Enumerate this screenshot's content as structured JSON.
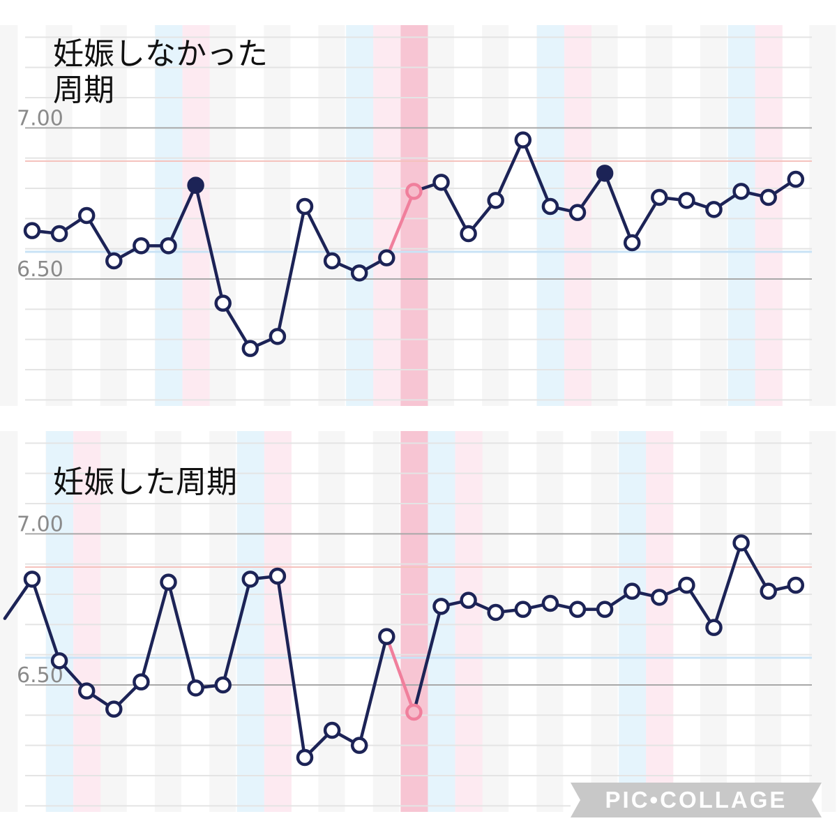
{
  "chart_data": [
    {
      "type": "line",
      "title": "妊娠しなかった\n周期",
      "yticks": [
        "7.00",
        "6.50"
      ],
      "ylim": [
        6.08,
        7.34
      ],
      "reference_lines": [
        6.89,
        6.59
      ],
      "x_start": 0,
      "values": [
        6.66,
        6.65,
        6.71,
        6.56,
        6.61,
        6.61,
        6.81,
        6.42,
        6.27,
        6.31,
        6.74,
        6.56,
        6.52,
        6.57,
        6.79,
        6.82,
        6.65,
        6.76,
        6.96,
        6.74,
        6.72,
        6.85,
        6.62,
        6.77,
        6.76,
        6.73,
        6.79,
        6.77,
        6.83
      ],
      "marker_styles": [
        "open",
        "open",
        "open",
        "open",
        "open",
        "open",
        "filled",
        "open",
        "open",
        "open",
        "open",
        "open",
        "open",
        "open",
        "pink",
        "open",
        "open",
        "open",
        "open",
        "open",
        "open",
        "filled",
        "open",
        "open",
        "open",
        "open",
        "open",
        "open",
        "open"
      ],
      "pink_segment": 13,
      "bands": [
        {
          "day": 5,
          "color": "blue"
        },
        {
          "day": 6,
          "color": "pink"
        },
        {
          "day": 12,
          "color": "blue"
        },
        {
          "day": 13,
          "color": "pink"
        },
        {
          "day": 14,
          "color": "ovulation"
        },
        {
          "day": 19,
          "color": "blue"
        },
        {
          "day": 20,
          "color": "pink"
        },
        {
          "day": 26,
          "color": "blue"
        },
        {
          "day": 27,
          "color": "pink"
        }
      ]
    },
    {
      "type": "line",
      "title": "妊娠した周期",
      "yticks": [
        "7.00",
        "6.50"
      ],
      "ylim": [
        6.08,
        7.34
      ],
      "reference_lines": [
        6.89,
        6.59
      ],
      "x_start": -1,
      "values": [
        6.72,
        6.85,
        6.58,
        6.48,
        6.42,
        6.51,
        6.84,
        6.49,
        6.5,
        6.85,
        6.86,
        6.26,
        6.35,
        6.3,
        6.66,
        6.41,
        6.76,
        6.78,
        6.74,
        6.75,
        6.77,
        6.75,
        6.75,
        6.81,
        6.79,
        6.83,
        6.69,
        6.97,
        6.81,
        6.83
      ],
      "marker_styles": [
        "none",
        "open",
        "open",
        "open",
        "open",
        "open",
        "open",
        "open",
        "open",
        "open",
        "open",
        "open",
        "open",
        "open",
        "open",
        "pink",
        "open",
        "open",
        "open",
        "open",
        "open",
        "open",
        "open",
        "open",
        "open",
        "open",
        "open",
        "open",
        "open",
        "open"
      ],
      "pink_segment": 14,
      "bands": [
        {
          "day": 1,
          "color": "blue"
        },
        {
          "day": 2,
          "color": "pink"
        },
        {
          "day": 8,
          "color": "blue"
        },
        {
          "day": 9,
          "color": "pink"
        },
        {
          "day": 14,
          "color": "ovulation"
        },
        {
          "day": 15,
          "color": "blue"
        },
        {
          "day": 16,
          "color": "pink"
        },
        {
          "day": 22,
          "color": "blue"
        },
        {
          "day": 23,
          "color": "pink"
        }
      ]
    }
  ],
  "colors": {
    "line": "#1c2356",
    "marker_fill": "#ffffff",
    "marker_pink": "#f07f9c",
    "marker_pink_fill": "#f6bccb",
    "band_blue": "#e5f4fc",
    "band_pink": "#fdeaf1",
    "band_ovulation": "#f7c5d3",
    "stripe": "#f6f6f6",
    "ref_upper": "#f5c2bd",
    "ref_lower": "#c9e3f6",
    "grid_major": "#a8a8a8",
    "grid_minor": "#e4e4e4",
    "tick_text": "#8a8a8a"
  },
  "watermark": "PIC•COLLAGE"
}
